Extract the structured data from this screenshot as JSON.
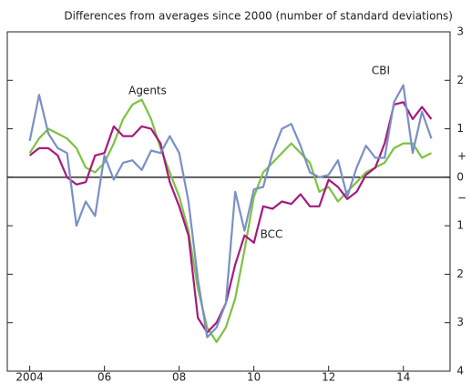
{
  "chart_data": {
    "type": "line",
    "title": "Differences from averages since 2000 (number of standard deviations)",
    "x": [
      2004,
      2004.25,
      2004.5,
      2004.75,
      2005,
      2005.25,
      2005.5,
      2005.75,
      2006,
      2006.25,
      2006.5,
      2006.75,
      2007,
      2007.25,
      2007.5,
      2007.75,
      2008,
      2008.25,
      2008.5,
      2008.75,
      2009,
      2009.25,
      2009.5,
      2009.75,
      2010,
      2010.25,
      2010.5,
      2010.75,
      2011,
      2011.25,
      2011.5,
      2011.75,
      2012,
      2012.25,
      2012.5,
      2012.75,
      2013,
      2013.25,
      2013.5,
      2013.75,
      2014,
      2014.25,
      2014.5,
      2014.75
    ],
    "series": [
      {
        "name": "Agents",
        "color": "#7dc242",
        "values": [
          0.5,
          0.8,
          1.0,
          0.9,
          0.8,
          0.6,
          0.2,
          0.1,
          0.3,
          0.7,
          1.2,
          1.5,
          1.6,
          1.2,
          0.6,
          0.1,
          -0.4,
          -1.1,
          -2.3,
          -3.1,
          -3.4,
          -3.1,
          -2.5,
          -1.5,
          -0.4,
          0.1,
          0.3,
          0.5,
          0.7,
          0.5,
          0.3,
          -0.3,
          -0.2,
          -0.5,
          -0.3,
          -0.1,
          0.1,
          0.2,
          0.3,
          0.6,
          0.7,
          0.7,
          0.4,
          0.5
        ]
      },
      {
        "name": "BCC",
        "color": "#a6197e",
        "values": [
          0.45,
          0.6,
          0.6,
          0.45,
          0.0,
          -0.15,
          -0.1,
          0.45,
          0.5,
          1.05,
          0.85,
          0.85,
          1.05,
          1.0,
          0.7,
          -0.1,
          -0.6,
          -1.2,
          -2.9,
          -3.2,
          -3.0,
          -2.6,
          -1.8,
          -1.2,
          -1.35,
          -0.6,
          -0.65,
          -0.5,
          -0.55,
          -0.35,
          -0.6,
          -0.6,
          -0.05,
          -0.2,
          -0.45,
          -0.3,
          0.05,
          0.2,
          0.7,
          1.5,
          1.55,
          1.2,
          1.45,
          1.2
        ]
      },
      {
        "name": "CBI",
        "color": "#7a8fc7",
        "values": [
          0.75,
          1.7,
          0.9,
          0.6,
          0.5,
          -1.0,
          -0.5,
          -0.8,
          0.45,
          -0.05,
          0.3,
          0.35,
          0.15,
          0.55,
          0.5,
          0.85,
          0.5,
          -0.5,
          -2.1,
          -3.3,
          -3.1,
          -2.6,
          -0.3,
          -1.1,
          -0.25,
          -0.2,
          0.5,
          1.0,
          1.1,
          0.65,
          0.1,
          0.0,
          0.05,
          0.35,
          -0.4,
          0.2,
          0.65,
          0.4,
          0.4,
          1.55,
          1.9,
          0.5,
          1.35,
          0.8
        ]
      }
    ],
    "xlim": [
      2003.4,
      2015.25
    ],
    "xticks": [
      {
        "value": 2004,
        "label": "2004"
      },
      {
        "value": 2006,
        "label": "06"
      },
      {
        "value": 2008,
        "label": "08"
      },
      {
        "value": 2010,
        "label": "10"
      },
      {
        "value": 2012,
        "label": "12"
      },
      {
        "value": 2014,
        "label": "14"
      }
    ],
    "ylim": [
      -4,
      3
    ],
    "yticks": [
      3,
      2,
      1,
      0,
      {
        "value": -1,
        "label": "1"
      },
      {
        "value": -2,
        "label": "2"
      },
      {
        "value": -3,
        "label": "3"
      },
      {
        "value": -4,
        "label": "4"
      }
    ],
    "sign_labels": [
      "+",
      "−"
    ]
  }
}
